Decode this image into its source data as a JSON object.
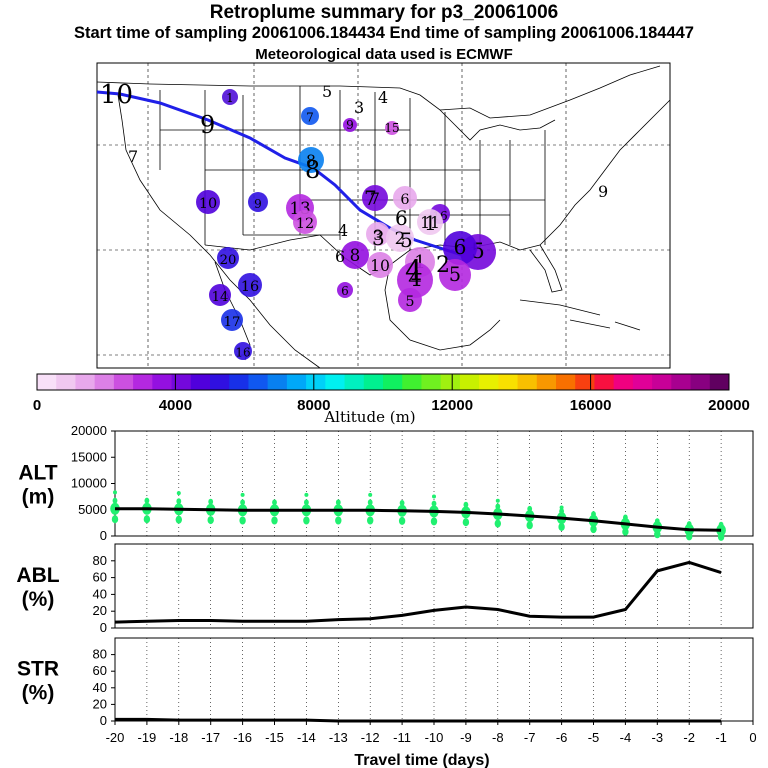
{
  "header": {
    "title": "Retroplume summary for p3_20061006",
    "sampling": "Start time of sampling 20061006.184434     End time of sampling 20061006.184447",
    "met": "Meteorological data used is ECMWF"
  },
  "colorbar": {
    "label": "Altitude (m)",
    "ticks": [
      "0",
      "4000",
      "8000",
      "12000",
      "16000",
      "20000"
    ],
    "colors": [
      "#f8e0f8",
      "#f0c8f0",
      "#e8a8ec",
      "#dc80e6",
      "#cc50e0",
      "#b428e0",
      "#9410e0",
      "#7408dc",
      "#5000dc",
      "#3010e0",
      "#1830e8",
      "#1058f0",
      "#0880f0",
      "#00a8f8",
      "#00d0f8",
      "#00f0f0",
      "#00f0c0",
      "#00f090",
      "#10f060",
      "#40f030",
      "#70f020",
      "#a0f010",
      "#c8f000",
      "#e8f000",
      "#f8e000",
      "#f8c000",
      "#f89800",
      "#f87000",
      "#f84010",
      "#f81040",
      "#f00080",
      "#e00098",
      "#c80098",
      "#a80090",
      "#880080",
      "#600060"
    ]
  },
  "map": {
    "trajectory_labels": [
      "10",
      "9",
      "8",
      "7",
      "6",
      "5",
      "4",
      "3",
      "2",
      "1"
    ],
    "cluster_labels": [
      "10",
      "9",
      "8",
      "7",
      "6",
      "5",
      "4",
      "3",
      "2",
      "1",
      "11",
      "12",
      "13",
      "14",
      "15",
      "16",
      "17",
      "18",
      "19",
      "20"
    ]
  },
  "chart_data": [
    {
      "type": "line",
      "name": "ALT",
      "ylabel_line1": "ALT",
      "ylabel_line2": "(m)",
      "ylim": [
        0,
        20000
      ],
      "yticks": [
        "20000",
        "15000",
        "10000",
        "5000",
        "0"
      ],
      "x": [
        -20,
        -19,
        -18,
        -17,
        -16,
        -15,
        -14,
        -13,
        -12,
        -11,
        -10,
        -9,
        -8,
        -7,
        -6,
        -5,
        -4,
        -3,
        -2,
        -1
      ],
      "values": [
        5200,
        5200,
        5100,
        5000,
        4900,
        4900,
        4900,
        4900,
        4900,
        4800,
        4700,
        4500,
        4200,
        3800,
        3400,
        2900,
        2300,
        1700,
        1200,
        1100
      ],
      "scatter_color": "#20f070"
    },
    {
      "type": "line",
      "name": "ABL",
      "ylabel_line1": "ABL",
      "ylabel_line2": "(%)",
      "ylim": [
        0,
        100
      ],
      "yticks": [
        "80",
        "60",
        "40",
        "20",
        "0"
      ],
      "x": [
        -20,
        -19,
        -18,
        -17,
        -16,
        -15,
        -14,
        -13,
        -12,
        -11,
        -10,
        -9,
        -8,
        -7,
        -6,
        -5,
        -4,
        -3,
        -2,
        -1
      ],
      "values": [
        7,
        8,
        9,
        9,
        8,
        8,
        8,
        10,
        11,
        15,
        21,
        25,
        22,
        14,
        13,
        13,
        22,
        68,
        78,
        66
      ]
    },
    {
      "type": "line",
      "name": "STR",
      "ylabel_line1": "STR",
      "ylabel_line2": "(%)",
      "ylim": [
        0,
        100
      ],
      "yticks": [
        "80",
        "60",
        "40",
        "20",
        "0"
      ],
      "x": [
        -20,
        -19,
        -18,
        -17,
        -16,
        -15,
        -14,
        -13,
        -12,
        -11,
        -10,
        -9,
        -8,
        -7,
        -6,
        -5,
        -4,
        -3,
        -2,
        -1
      ],
      "values": [
        2,
        2,
        1,
        1,
        1,
        1,
        1,
        0,
        0,
        0,
        0,
        0,
        0,
        0,
        0,
        0,
        0,
        0,
        0,
        0
      ],
      "xlabel": "Travel time (days)",
      "xticks": [
        "-20",
        "-19",
        "-18",
        "-17",
        "-16",
        "-15",
        "-14",
        "-13",
        "-12",
        "-11",
        "-10",
        "-9",
        "-8",
        "-7",
        "-6",
        "-5",
        "-4",
        "-3",
        "-2",
        "-1",
        "0"
      ]
    }
  ]
}
